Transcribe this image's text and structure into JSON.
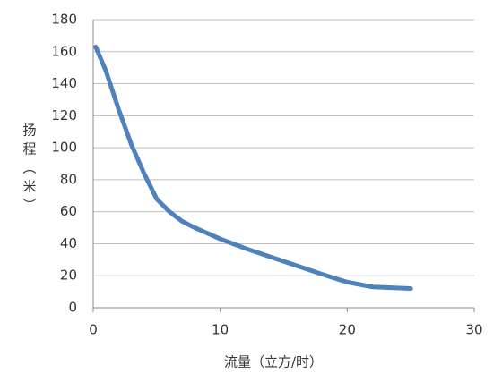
{
  "chart_data": {
    "type": "line",
    "x_label": "流量（立方/时）",
    "y_label": "扬程（米）",
    "series": [
      {
        "color": "#4f81bd",
        "x": [
          0.2,
          1,
          2,
          3,
          4,
          5,
          6,
          7,
          8,
          10,
          12,
          15,
          18,
          20,
          22,
          25
        ],
        "values": [
          163,
          148,
          124,
          102,
          84,
          68,
          60,
          54,
          50,
          43,
          37,
          29,
          21,
          16,
          13,
          12
        ]
      }
    ],
    "xlim": [
      0,
      30
    ],
    "xticks": [
      0,
      10,
      20,
      30
    ],
    "ylim": [
      0,
      180
    ],
    "yticks": [
      0,
      20,
      40,
      60,
      80,
      100,
      120,
      140,
      160,
      180
    ],
    "grid": true
  }
}
